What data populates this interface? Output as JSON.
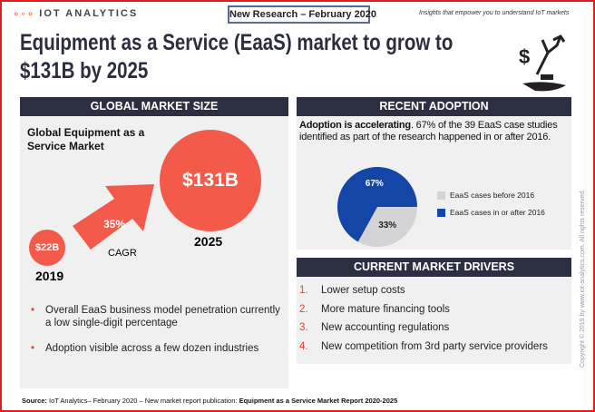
{
  "header": {
    "logo_text": "IOT ANALYTICS",
    "badge": "New Research – February 2020",
    "tagline": "Insights that empower you to understand IoT markets",
    "title": "Equipment as a Service (EaaS) market to grow to $131B by 2025",
    "icon": "robot-arm-dollar-hand-icon"
  },
  "left": {
    "header": "GLOBAL MARKET SIZE",
    "subtitle": "Global Equipment as a Service Market",
    "start": {
      "value": "$22B",
      "year": "2019"
    },
    "end": {
      "value": "$131B",
      "year": "2025"
    },
    "growth": {
      "value": "35%",
      "label": "CAGR"
    },
    "bullets": [
      "Overall EaaS business model penetration currently a low single-digit percentage",
      "Adoption visible across a few dozen industries"
    ],
    "color": "#f45a4a"
  },
  "right": {
    "header": "RECENT ADOPTION",
    "lead_bold": "Adoption is accelerating",
    "lead_rest": ". 67% of the 39 EaaS case studies identified as part of the research happened in or after 2016.",
    "drivers_header": "CURRENT MARKET DRIVERS",
    "drivers": [
      {
        "n": "1.",
        "text": "Lower setup costs"
      },
      {
        "n": "2.",
        "text": "More mature financing tools"
      },
      {
        "n": "3.",
        "text": "New accounting regulations"
      },
      {
        "n": "4.",
        "text": "New competition from 3rd party service providers"
      }
    ]
  },
  "chart_data": {
    "type": "pie",
    "series": [
      {
        "name": "EaaS cases before 2016",
        "value": 33,
        "label": "33%",
        "color": "#d4d4d6"
      },
      {
        "name": "EaaS cases in or after 2016",
        "value": 67,
        "label": "67%",
        "color": "#1446a8"
      }
    ]
  },
  "footer": {
    "source_label": "Source:",
    "source_text": " IoT Analytics– February 2020 – New market report publication: ",
    "source_bold": "Equipment as a Service  Market Report 2020-2025",
    "copyright": "Copyright © 2019 by www.iot-analytics.com. All rights reserved."
  }
}
